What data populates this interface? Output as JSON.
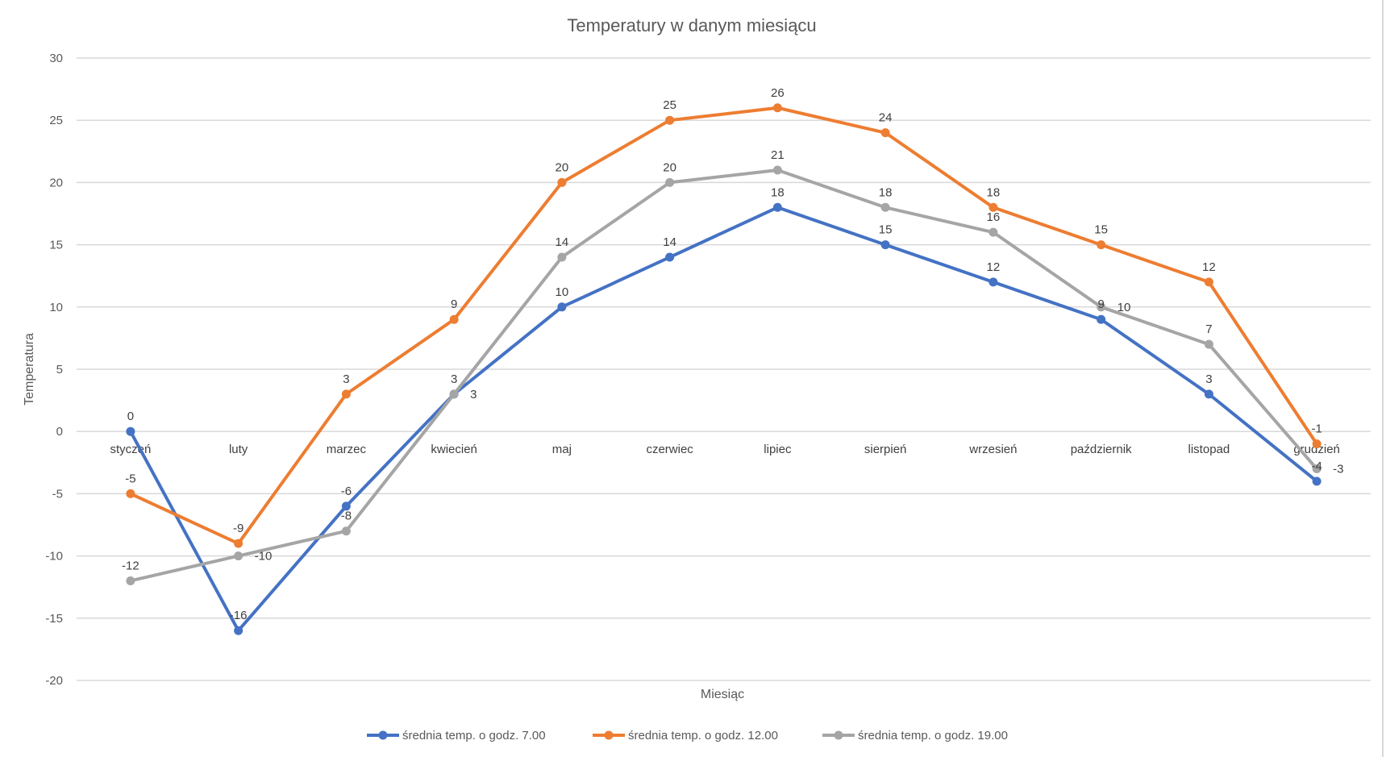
{
  "chart_data": {
    "type": "line",
    "title": "Temperatury w danym miesiącu",
    "xlabel": "Miesiąc",
    "ylabel": "Temperatura",
    "ylim": [
      -20,
      30
    ],
    "yticks": [
      30,
      25,
      20,
      15,
      10,
      5,
      0,
      -5,
      -10,
      -15,
      -20
    ],
    "grid": true,
    "legend": "bottom",
    "data_labels": true,
    "categories": [
      "styczeń",
      "luty",
      "marzec",
      "kwiecień",
      "maj",
      "czerwiec",
      "lipiec",
      "sierpień",
      "wrzesień",
      "październik",
      "listopad",
      "grudzień"
    ],
    "series": [
      {
        "name": "średnia temp. o godz. 7.00",
        "color": "#4472c4",
        "values": [
          0,
          -16,
          -6,
          3,
          10,
          14,
          18,
          15,
          12,
          9,
          3,
          -4
        ]
      },
      {
        "name": "średnia temp. o godz. 12.00",
        "color": "#ed7d31",
        "values": [
          -5,
          -9,
          3,
          9,
          20,
          25,
          26,
          24,
          18,
          15,
          12,
          -1
        ]
      },
      {
        "name": "średnia temp. o godz. 19.00",
        "color": "#a5a5a5",
        "values": [
          -12,
          -10,
          -8,
          3,
          14,
          20,
          21,
          18,
          16,
          10,
          7,
          -3
        ]
      }
    ]
  }
}
